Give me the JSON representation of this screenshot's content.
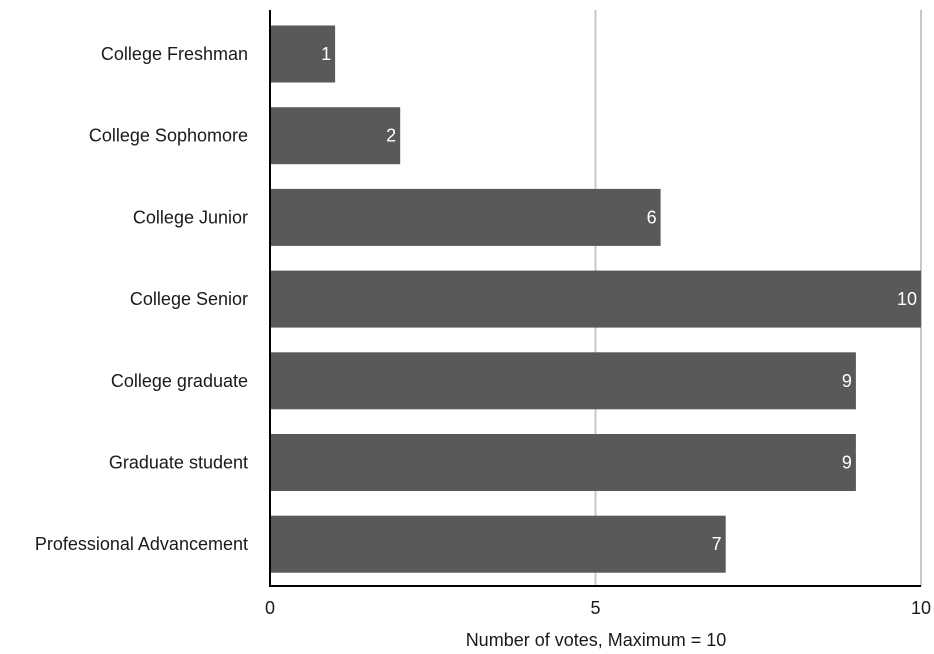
{
  "chart_data": {
    "type": "bar",
    "orientation": "horizontal",
    "title": "",
    "xlabel": "Number of votes, Maximum = 10",
    "ylabel": "",
    "categories": [
      "College Freshman",
      "College Sophomore",
      "College Junior",
      "College Senior",
      "College graduate",
      "Graduate student",
      "Professional Advancement"
    ],
    "values": [
      1,
      2,
      6,
      10,
      9,
      9,
      7
    ],
    "xlim": [
      0,
      10
    ],
    "xticks": [
      0,
      5,
      10
    ],
    "grid": true,
    "legend": "none",
    "bar_color": "#595959",
    "grid_color": "#c8c8c8",
    "axis_color": "#000000",
    "value_label_color": "#ffffff"
  }
}
